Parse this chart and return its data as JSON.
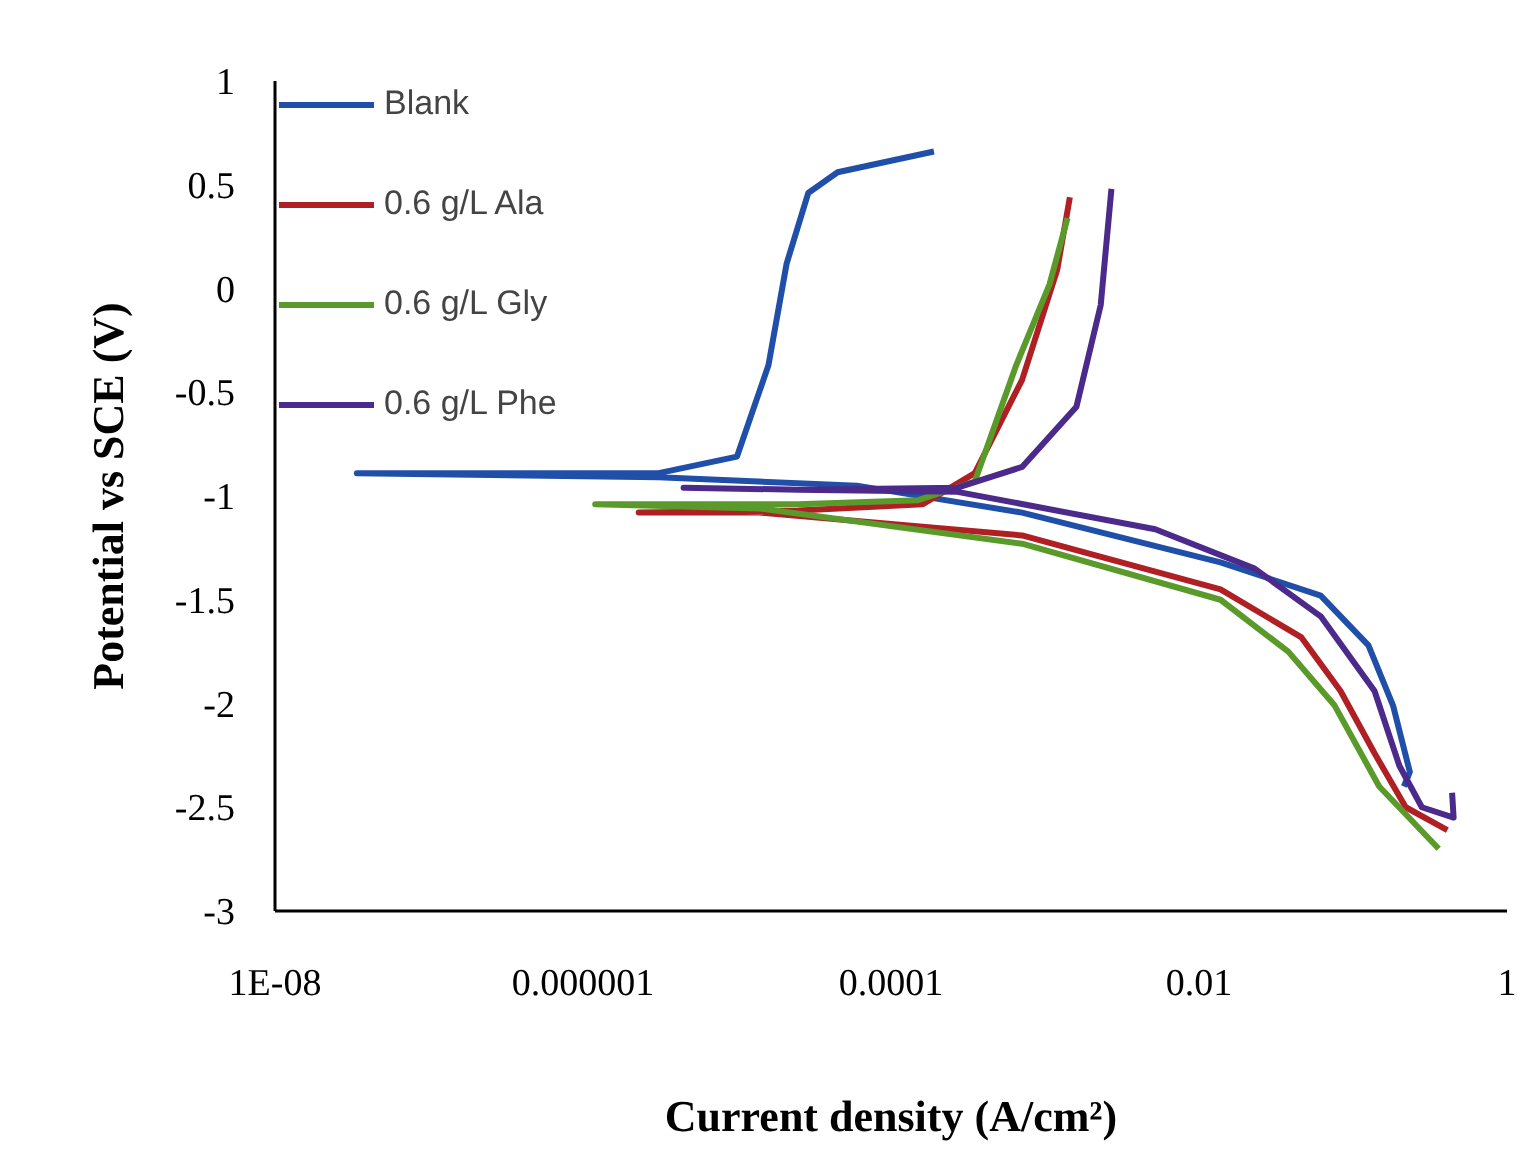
{
  "chart_data": {
    "type": "line",
    "xlabel": "Current density (A/cm²)",
    "ylabel": "Potential vs SCE (V)",
    "log": "x",
    "xlim": [
      1e-08,
      1
    ],
    "xticks": [
      {
        "value": 1e-08,
        "label": "1E-08"
      },
      {
        "value": 1e-06,
        "label": "0.000001"
      },
      0.0001,
      0.01,
      1
    ],
    "ylim": [
      -3,
      1
    ],
    "yticks": [
      -3,
      -2.5,
      -2,
      -1.5,
      -1,
      -0.5,
      0,
      0.5,
      1
    ],
    "grid": false,
    "legend": "top left",
    "marker": "none",
    "line_style": "solid",
    "series": [
      {
        "name": "Blank",
        "color": "#1f4fa8",
        "x": [
          0.214,
          0.234,
          0.182,
          0.126,
          0.0617,
          0.0138,
          0.00071,
          6e-05,
          3.1e-06,
          3.4e-08,
          3.1e-06,
          1e-05,
          1.6e-05,
          2.1e-05,
          2.9e-05,
          4.5e-05,
          0.00019
        ],
        "values": [
          -2.4,
          -2.33,
          -2.01,
          -1.72,
          -1.48,
          -1.32,
          -1.08,
          -0.95,
          -0.91,
          -0.89,
          -0.89,
          -0.81,
          -0.37,
          0.12,
          0.46,
          0.56,
          0.66
        ]
      },
      {
        "name": "0.6 g/L Ala",
        "color": "#b01f24",
        "x": [
          0.41,
          0.22,
          0.138,
          0.083,
          0.046,
          0.0138,
          0.00071,
          1.4e-05,
          2.3e-06,
          2.5e-05,
          0.00016,
          0.00035,
          0.00071,
          0.0012,
          0.00145
        ],
        "values": [
          -2.61,
          -2.5,
          -2.24,
          -1.94,
          -1.68,
          -1.45,
          -1.19,
          -1.08,
          -1.08,
          -1.07,
          -1.04,
          -0.89,
          -0.44,
          0.09,
          0.44
        ]
      },
      {
        "name": "0.6 g/L Gly",
        "color": "#5a9a2a",
        "x": [
          0.36,
          0.148,
          0.076,
          0.038,
          0.0138,
          0.00071,
          1.4e-05,
          1.2e-06,
          2.5e-05,
          0.00015,
          0.00035,
          0.00065,
          0.00107,
          0.0014
        ],
        "values": [
          -2.7,
          -2.4,
          -2.01,
          -1.75,
          -1.5,
          -1.23,
          -1.06,
          -1.04,
          -1.04,
          -1.02,
          -0.93,
          -0.37,
          0.02,
          0.34
        ]
      },
      {
        "name": "0.6 g/L Phe",
        "color": "#4b2a8c",
        "x": [
          0.44,
          0.45,
          0.28,
          0.2,
          0.138,
          0.0617,
          0.023,
          0.0052,
          0.00027,
          2.5e-05,
          4.5e-06,
          2.5e-05,
          0.00027,
          0.00071,
          0.0016,
          0.0023,
          0.0027
        ],
        "values": [
          -2.43,
          -2.55,
          -2.5,
          -2.3,
          -1.94,
          -1.58,
          -1.35,
          -1.16,
          -0.98,
          -0.97,
          -0.96,
          -0.97,
          -0.96,
          -0.86,
          -0.57,
          -0.08,
          0.48
        ]
      }
    ]
  }
}
